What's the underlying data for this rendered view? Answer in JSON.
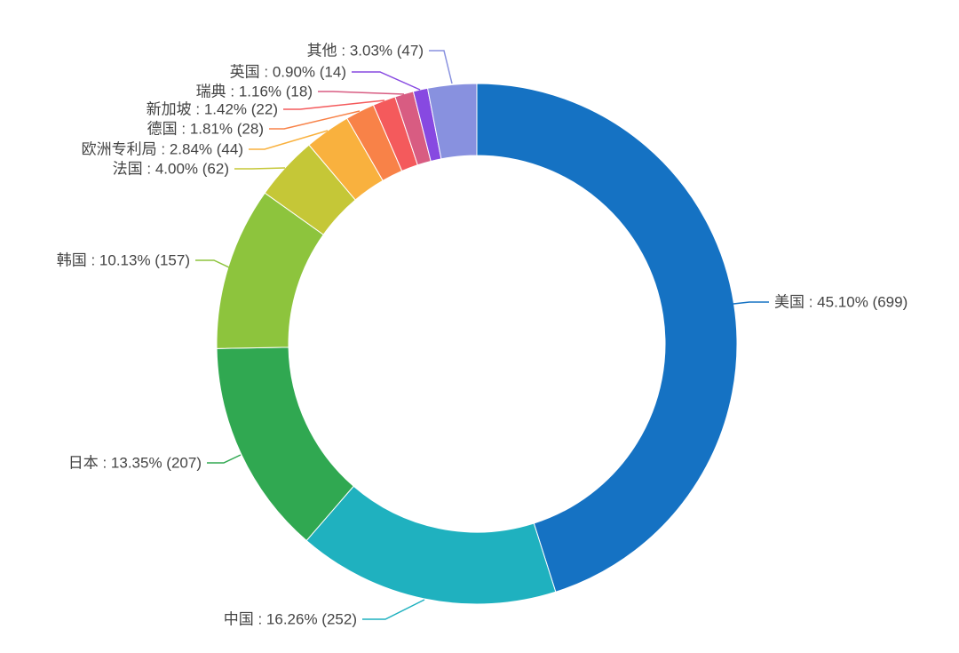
{
  "chart_data": {
    "type": "pie",
    "subtype": "donut",
    "title": "",
    "legend_position": "none",
    "start_angle_deg": 0,
    "direction": "clockwise",
    "label_format": "{label} : {percent}% ({count})",
    "colors": {
      "background": "#ffffff",
      "label_text": "#444444",
      "slice_border": "#ffffff"
    },
    "items": [
      {
        "label": "美国",
        "percent": "45.10",
        "count": 699,
        "color": "#1572c3",
        "text": "美国 : 45.10% (699)"
      },
      {
        "label": "中国",
        "percent": "16.26",
        "count": 252,
        "color": "#1fb1bf",
        "text": "中国 : 16.26% (252)"
      },
      {
        "label": "日本",
        "percent": "13.35",
        "count": 207,
        "color": "#30a851",
        "text": "日本 : 13.35% (207)"
      },
      {
        "label": "韩国",
        "percent": "10.13",
        "count": 157,
        "color": "#8dc43d",
        "text": "韩国 : 10.13% (157)"
      },
      {
        "label": "法国",
        "percent": "4.00",
        "count": 62,
        "color": "#c5c737",
        "text": "法国 : 4.00% (62)"
      },
      {
        "label": "欧洲专利局",
        "percent": "2.84",
        "count": 44,
        "color": "#f9b13e",
        "text": "欧洲专利局 : 2.84% (44)"
      },
      {
        "label": "德国",
        "percent": "1.81",
        "count": 28,
        "color": "#f88248",
        "text": "德国 : 1.81% (28)"
      },
      {
        "label": "新加坡",
        "percent": "1.42",
        "count": 22,
        "color": "#f45a5c",
        "text": "新加坡 : 1.42% (22)"
      },
      {
        "label": "瑞典",
        "percent": "1.16",
        "count": 18,
        "color": "#d85c82",
        "text": "瑞典 : 1.16% (18)"
      },
      {
        "label": "英国",
        "percent": "0.90",
        "count": 14,
        "color": "#8749e1",
        "text": "英国 : 0.90% (14)"
      },
      {
        "label": "其他",
        "percent": "3.03",
        "count": 47,
        "color": "#8891df",
        "text": "其他 : 3.03% (47)"
      }
    ]
  }
}
